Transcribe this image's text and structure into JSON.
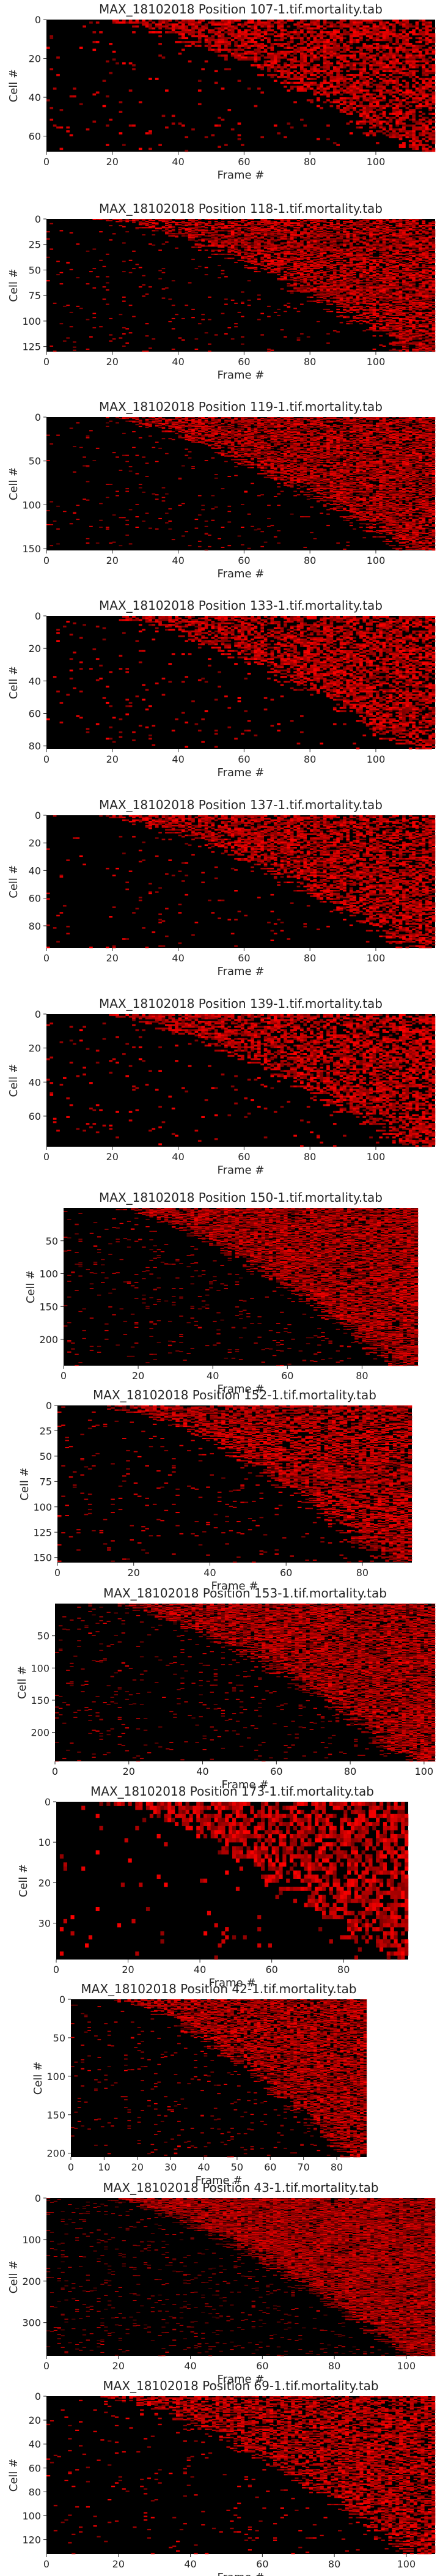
{
  "chart_data": [
    {
      "type": "heatmap",
      "title": "MAX_18102018 Position 107-1.tif.mortality.tab",
      "xlabel": "Frame #",
      "ylabel": "Cell #",
      "xlim": [
        0,
        118
      ],
      "ylim": [
        0,
        68
      ],
      "xticks": [
        0,
        20,
        40,
        60,
        80,
        100
      ],
      "yticks": [
        0,
        20,
        40,
        60
      ],
      "colormap": [
        "#000000",
        "#ff0000"
      ]
    },
    {
      "type": "heatmap",
      "title": "MAX_18102018 Position 118-1.tif.mortality.tab",
      "xlabel": "Frame #",
      "ylabel": "Cell #",
      "xlim": [
        0,
        118
      ],
      "ylim": [
        0,
        130
      ],
      "xticks": [
        0,
        20,
        40,
        60,
        80,
        100
      ],
      "yticks": [
        0,
        25,
        50,
        75,
        100,
        125
      ],
      "colormap": [
        "#000000",
        "#ff0000"
      ]
    },
    {
      "type": "heatmap",
      "title": "MAX_18102018 Position 119-1.tif.mortality.tab",
      "xlabel": "Frame #",
      "ylabel": "Cell #",
      "xlim": [
        0,
        118
      ],
      "ylim": [
        0,
        152
      ],
      "xticks": [
        0,
        20,
        40,
        60,
        80,
        100
      ],
      "yticks": [
        0,
        50,
        100,
        150
      ],
      "colormap": [
        "#000000",
        "#ff0000"
      ]
    },
    {
      "type": "heatmap",
      "title": "MAX_18102018 Position 133-1.tif.mortality.tab",
      "xlabel": "Frame #",
      "ylabel": "Cell #",
      "xlim": [
        0,
        118
      ],
      "ylim": [
        0,
        82
      ],
      "xticks": [
        0,
        20,
        40,
        60,
        80,
        100
      ],
      "yticks": [
        0,
        20,
        40,
        60,
        80
      ],
      "colormap": [
        "#000000",
        "#ff0000"
      ]
    },
    {
      "type": "heatmap",
      "title": "MAX_18102018 Position 137-1.tif.mortality.tab",
      "xlabel": "Frame #",
      "ylabel": "Cell #",
      "xlim": [
        0,
        118
      ],
      "ylim": [
        0,
        96
      ],
      "xticks": [
        0,
        20,
        40,
        60,
        80,
        100
      ],
      "yticks": [
        0,
        20,
        40,
        60,
        80
      ],
      "colormap": [
        "#000000",
        "#ff0000"
      ]
    },
    {
      "type": "heatmap",
      "title": "MAX_18102018 Position 139-1.tif.mortality.tab",
      "xlabel": "Frame #",
      "ylabel": "Cell #",
      "xlim": [
        0,
        118
      ],
      "ylim": [
        0,
        78
      ],
      "xticks": [
        0,
        20,
        40,
        60,
        80,
        100
      ],
      "yticks": [
        0,
        20,
        40,
        60
      ],
      "colormap": [
        "#000000",
        "#ff0000"
      ]
    },
    {
      "type": "heatmap",
      "title": "MAX_18102018 Position 150-1.tif.mortality.tab",
      "xlabel": "Frame #",
      "ylabel": "Cell #",
      "xlim": [
        0,
        95
      ],
      "ylim": [
        0,
        240
      ],
      "xticks": [
        0,
        20,
        40,
        60,
        80
      ],
      "yticks": [
        50,
        100,
        150,
        200
      ],
      "colormap": [
        "#000000",
        "#ff0000"
      ]
    },
    {
      "type": "heatmap",
      "title": "MAX_18102018 Position 152-1.tif.mortality.tab",
      "xlabel": "Frame #",
      "ylabel": "Cell #",
      "xlim": [
        0,
        93
      ],
      "ylim": [
        0,
        155
      ],
      "xticks": [
        0,
        20,
        40,
        60,
        80
      ],
      "yticks": [
        0,
        25,
        50,
        75,
        100,
        125,
        150
      ],
      "colormap": [
        "#000000",
        "#ff0000"
      ]
    },
    {
      "type": "heatmap",
      "title": "MAX_18102018 Position 153-1.tif.mortality.tab",
      "xlabel": "Frame #",
      "ylabel": "Cell #",
      "xlim": [
        0,
        103
      ],
      "ylim": [
        0,
        245
      ],
      "xticks": [
        0,
        20,
        40,
        60,
        80,
        100
      ],
      "yticks": [
        50,
        100,
        150,
        200
      ],
      "colormap": [
        "#000000",
        "#ff0000"
      ]
    },
    {
      "type": "heatmap",
      "title": "MAX_18102018 Position 173-1.tif.mortality.tab",
      "xlabel": "Frame #",
      "ylabel": "Cell #",
      "xlim": [
        0,
        98
      ],
      "ylim": [
        0,
        39
      ],
      "xticks": [
        0,
        20,
        40,
        60,
        80
      ],
      "yticks": [
        0,
        10,
        20,
        30
      ],
      "colormap": [
        "#000000",
        "#ff0000"
      ]
    },
    {
      "type": "heatmap",
      "title": "MAX_18102018 Position 42-1.tif.mortality.tab",
      "xlabel": "Frame #",
      "ylabel": "Cell #",
      "xlim": [
        0,
        89
      ],
      "ylim": [
        0,
        205
      ],
      "xticks": [
        0,
        10,
        20,
        30,
        40,
        50,
        60,
        70,
        80
      ],
      "yticks": [
        0,
        50,
        100,
        150,
        200
      ],
      "colormap": [
        "#000000",
        "#ff0000"
      ]
    },
    {
      "type": "heatmap",
      "title": "MAX_18102018 Position 43-1.tif.mortality.tab",
      "xlabel": "Frame #",
      "ylabel": "Cell #",
      "xlim": [
        0,
        108
      ],
      "ylim": [
        0,
        380
      ],
      "xticks": [
        0,
        20,
        40,
        60,
        80,
        100
      ],
      "yticks": [
        0,
        100,
        200,
        300
      ],
      "colormap": [
        "#000000",
        "#ff0000"
      ]
    },
    {
      "type": "heatmap",
      "title": "MAX_18102018 Position 69-1.tif.mortality.tab",
      "xlabel": "Frame #",
      "ylabel": "Cell #",
      "xlim": [
        0,
        108
      ],
      "ylim": [
        0,
        132
      ],
      "xticks": [
        0,
        20,
        40,
        60,
        80,
        100
      ],
      "yticks": [
        0,
        20,
        40,
        60,
        80,
        100,
        120
      ],
      "colormap": [
        "#000000",
        "#ff0000"
      ]
    }
  ]
}
